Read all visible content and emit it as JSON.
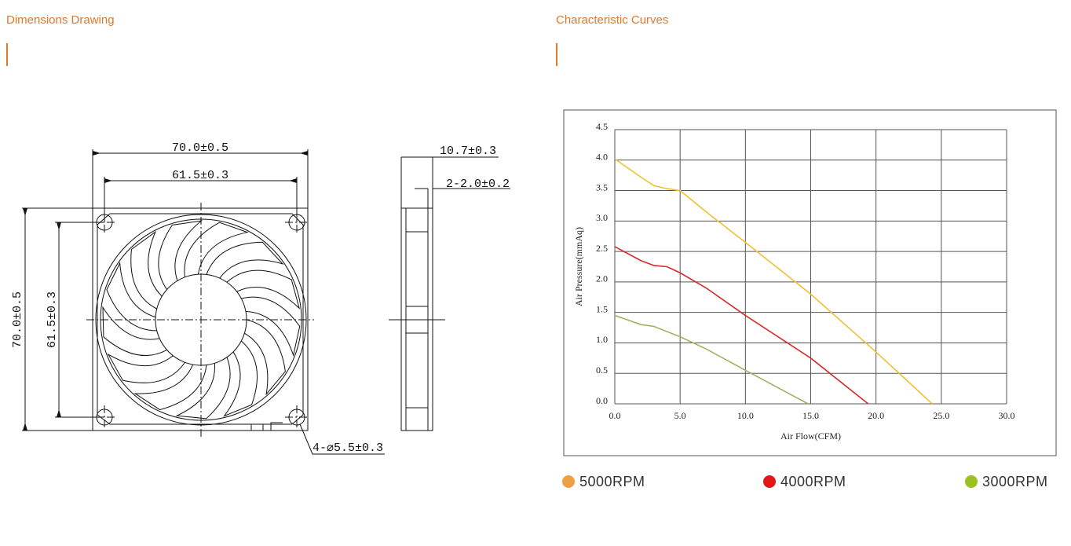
{
  "dimensions": {
    "heading": "Dimensions Drawing",
    "width_outer": "70.0±0.5",
    "width_holes": "61.5±0.3",
    "height_outer": "70.0±0.5",
    "height_holes": "61.5±0.3",
    "thickness": "10.7±0.3",
    "rib": "2-2.0±0.2",
    "holes": "4-⌀5.5±0.3"
  },
  "chart_data": {
    "type": "line",
    "heading": "Characteristic Curves",
    "xlabel": "Air Flow(CFM)",
    "ylabel": "Air Pressure(mmAq)",
    "xlim": [
      0,
      30
    ],
    "ylim": [
      0,
      4.5
    ],
    "xticks": [
      {
        "value": 0,
        "label": "0.0"
      },
      {
        "value": 5,
        "label": "5.0"
      },
      {
        "value": 10,
        "label": "10.0"
      },
      {
        "value": 15,
        "label": "15.0"
      },
      {
        "value": 20,
        "label": "20.0"
      },
      {
        "value": 25,
        "label": "25.0"
      },
      {
        "value": 30,
        "label": "30.0"
      }
    ],
    "yticks": [
      {
        "value": 0,
        "label": "0.0"
      },
      0.5,
      {
        "value": 1,
        "label": "1.0"
      },
      1.5,
      {
        "value": 2,
        "label": "2.0"
      },
      2.5,
      {
        "value": 3,
        "label": "3.0"
      },
      3.5,
      {
        "value": 4,
        "label": "4.0"
      },
      4.5
    ],
    "grid": true,
    "series": [
      {
        "name": "5000RPM",
        "color": "#f0c030",
        "marker_color": "#f0a040",
        "x": [
          0,
          2,
          3,
          4,
          5,
          7,
          10,
          15,
          20,
          24.3
        ],
        "values": [
          4.02,
          3.72,
          3.58,
          3.53,
          3.5,
          3.15,
          2.65,
          1.8,
          0.85,
          0
        ]
      },
      {
        "name": "4000RPM",
        "color": "#d42a2a",
        "marker_color": "#e01818",
        "x": [
          0,
          2,
          3,
          4,
          5,
          7,
          10,
          15,
          19.4
        ],
        "values": [
          2.58,
          2.35,
          2.27,
          2.25,
          2.15,
          1.9,
          1.45,
          0.75,
          0
        ]
      },
      {
        "name": "3000RPM",
        "color": "#a0b060",
        "marker_color": "#9cc020",
        "x": [
          0,
          2,
          3,
          5,
          7,
          10,
          14.8
        ],
        "values": [
          1.45,
          1.3,
          1.27,
          1.1,
          0.9,
          0.55,
          0
        ]
      }
    ]
  }
}
